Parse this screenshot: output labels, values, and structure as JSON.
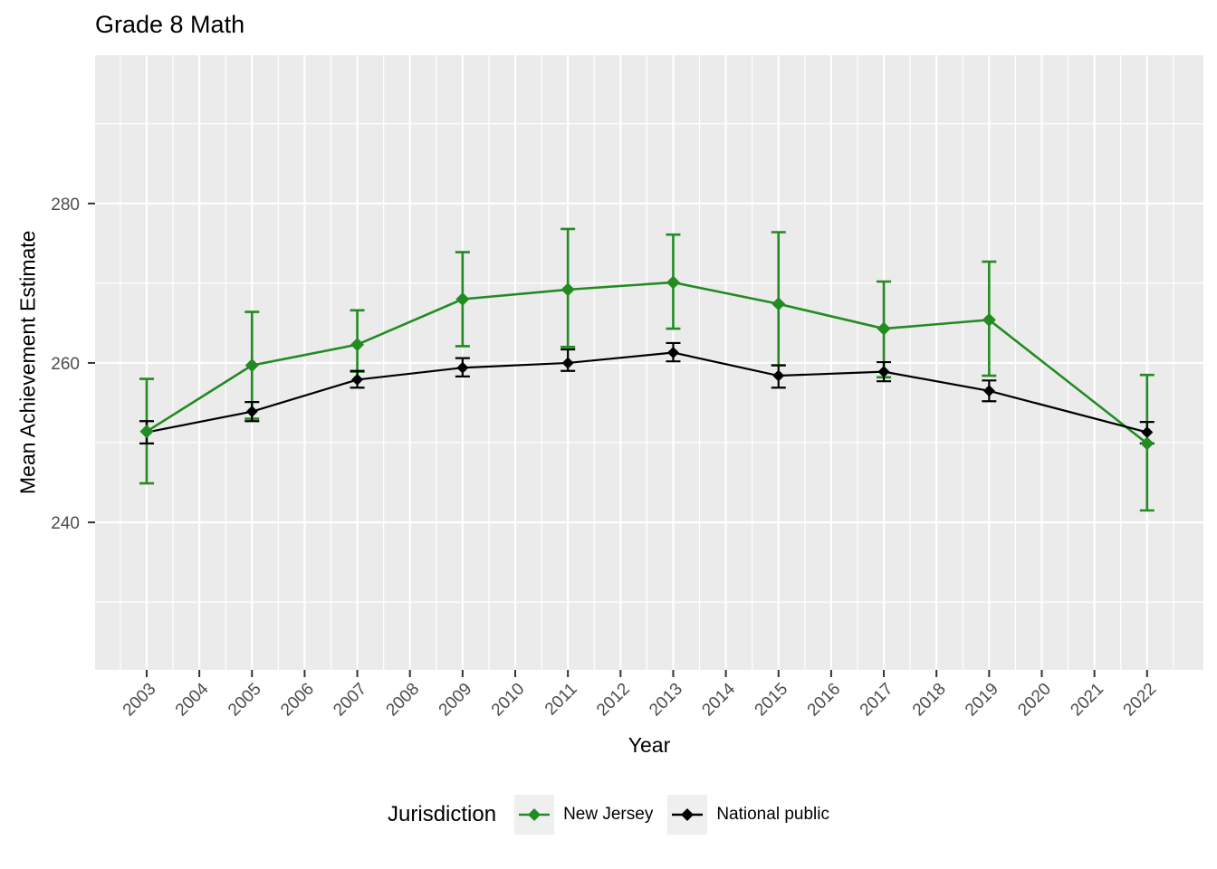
{
  "chart_data": {
    "type": "line",
    "title": "Grade 8 Math",
    "xlabel": "Year",
    "ylabel": "Mean Achievement Estimate",
    "legend": {
      "title": "Jurisdiction",
      "position": "bottom",
      "key_bg": "#EFEFEF"
    },
    "panel_bg": "#EBEBEB",
    "grid_color": "#FFFFFF",
    "axis_text_color": "#4D4D4D",
    "tick_mark_color": "#333333",
    "grid": true,
    "xlim": [
      2002.02,
      2023.07
    ],
    "ylim": [
      221.5,
      298.6
    ],
    "x_ticks": [
      2003,
      2004,
      2005,
      2006,
      2007,
      2008,
      2009,
      2010,
      2011,
      2012,
      2013,
      2014,
      2015,
      2016,
      2017,
      2018,
      2019,
      2020,
      2021,
      2022
    ],
    "y_ticks": [
      240,
      260,
      280
    ],
    "y_minor_ticks": [
      230,
      250,
      270,
      290
    ],
    "x_minor_step": 0.5,
    "marker": "diamond",
    "x": [
      2003,
      2005,
      2007,
      2009,
      2011,
      2013,
      2015,
      2017,
      2019,
      2022
    ],
    "series": [
      {
        "name": "New Jersey",
        "color": "#228B22",
        "values": [
          251.4,
          259.7,
          262.3,
          268.0,
          269.2,
          270.1,
          267.4,
          264.3,
          265.4,
          249.9
        ],
        "ci_low": [
          244.9,
          253.0,
          258.9,
          262.1,
          262.0,
          264.3,
          259.7,
          258.2,
          258.4,
          241.5
        ],
        "ci_high": [
          258.0,
          266.4,
          266.6,
          273.9,
          276.8,
          276.1,
          276.4,
          270.2,
          272.7,
          258.5
        ]
      },
      {
        "name": "National public",
        "color": "#000000",
        "values": [
          251.3,
          253.9,
          257.9,
          259.4,
          260.0,
          261.3,
          258.4,
          258.9,
          256.5,
          251.3
        ],
        "ci_low": [
          249.9,
          252.7,
          256.9,
          258.3,
          259.0,
          260.2,
          256.9,
          257.7,
          255.2,
          249.9
        ],
        "ci_high": [
          252.7,
          255.1,
          259.0,
          260.6,
          261.7,
          262.5,
          259.7,
          260.1,
          257.8,
          252.6
        ]
      }
    ]
  }
}
